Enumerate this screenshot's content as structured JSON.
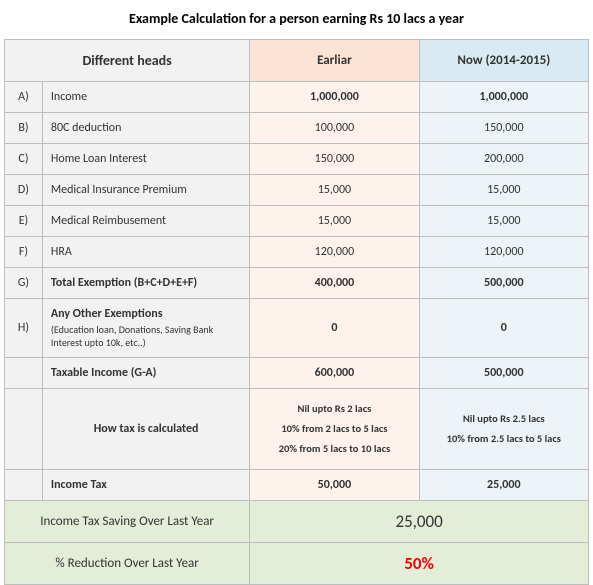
{
  "title": "Example Calculation for a person earning Rs 10 lacs a year",
  "headers": {
    "heads": "Different heads",
    "earlier": "Earliar",
    "now": "Now (2014-2015)"
  },
  "rows": {
    "a": {
      "l": "A)",
      "head": "Income",
      "e": "1,000,000",
      "n": "1,000,000"
    },
    "b": {
      "l": "B)",
      "head": "80C deduction",
      "e": "100,000",
      "n": "150,000"
    },
    "c": {
      "l": "C)",
      "head": "Home Loan Interest",
      "e": "150,000",
      "n": "200,000"
    },
    "d": {
      "l": "D)",
      "head": "Medical Insurance Premium",
      "e": "15,000",
      "n": "15,000"
    },
    "e": {
      "l": "E)",
      "head": "Medical Reimbusement",
      "e": "15,000",
      "n": "15,000"
    },
    "f": {
      "l": "F)",
      "head": "HRA",
      "e": "120,000",
      "n": "120,000"
    },
    "g": {
      "l": "G)",
      "head": "Total Exemption (B+C+D+E+F)",
      "e": "400,000",
      "n": "500,000"
    },
    "h": {
      "l": "H)",
      "head": "Any Other Exemptions",
      "sub": "(Education loan, Donations, Saving Bank Interest upto 10k, etc..)",
      "e": "0",
      "n": "0"
    },
    "taxable": {
      "head": "Taxable Income (G-A)",
      "e": "600,000",
      "n": "500,000"
    },
    "calc": {
      "head": "How tax is calculated",
      "e1": "Nil upto Rs 2 lacs",
      "e2": "10% from 2 lacs to 5 lacs",
      "e3": "20% from 5 lacs to 10 lacs",
      "n1": "Nil upto Rs 2.5 lacs",
      "n2": "10% from 2.5 lacs to 5 lacs"
    },
    "tax": {
      "head": "Income Tax",
      "e": "50,000",
      "n": "25,000"
    }
  },
  "summary": {
    "saving_label": "Income Tax Saving Over Last Year",
    "saving_val": "25,000",
    "pct_label": "% Reduction Over Last Year",
    "pct_val": "50%"
  }
}
